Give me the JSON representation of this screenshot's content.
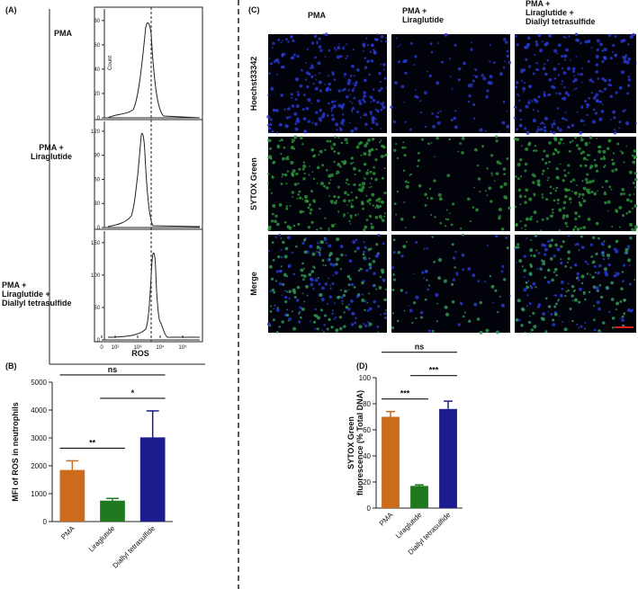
{
  "panel_labels": [
    "(A)",
    "(B)",
    "(C)",
    "(D)"
  ],
  "flow": {
    "rows": [
      "PMA",
      "PMA +\nLiraglutide",
      "PMA +\nLiraglutide +\nDiallyl tetrasulfide"
    ],
    "y_label": "Count",
    "x_label": "ROS",
    "plots": [
      {
        "ylim": [
          0,
          88
        ],
        "yticks": [
          0,
          20,
          40,
          60,
          80
        ]
      },
      {
        "ylim": [
          0,
          130
        ],
        "yticks": [
          0,
          30,
          60,
          90,
          120
        ]
      },
      {
        "ylim": [
          0,
          165
        ],
        "yticks": [
          0,
          50,
          100,
          150
        ]
      }
    ],
    "xticks": [
      0,
      {
        "value": 100,
        "label": "10²"
      },
      {
        "value": 1000,
        "label": "10³"
      },
      {
        "value": 10000,
        "label": "10⁴"
      },
      {
        "value": 100000,
        "label": "10⁵"
      }
    ]
  },
  "images": {
    "columns": [
      "PMA",
      "PMA +\nLiraglutide",
      "PMA +\nLiraglutide +\nDiallyl tetrasulfide"
    ],
    "rows": [
      "Hoechst33342",
      "SYTOX Green",
      "Merge"
    ]
  },
  "chart_data": [
    {
      "type": "bar",
      "panel": "(B)",
      "y_label": "MFI of ROS in neutrophils",
      "categories": [
        "PMA",
        "Liraglutide",
        "Diallyl tetrasulfide"
      ],
      "values": [
        1850,
        750,
        3020
      ],
      "errors": [
        330,
        80,
        950
      ],
      "colors": [
        "#cc6b1c",
        "#1f7a1f",
        "#1c1c8e"
      ],
      "ylim": [
        0,
        5000
      ],
      "yticks": [
        0,
        1000,
        2000,
        3000,
        4000,
        5000
      ],
      "annotations": [
        {
          "text": "**",
          "between": [
            0,
            1
          ]
        },
        {
          "text": "*",
          "between": [
            1,
            2
          ]
        },
        {
          "text": "ns",
          "between": [
            0,
            2
          ]
        }
      ]
    },
    {
      "type": "bar",
      "panel": "(D)",
      "y_label": "SYTOX Green\nfluorescence (% Total DNA)",
      "categories": [
        "PMA",
        "Liraglutide",
        "Diallyl tetrasulfide"
      ],
      "values": [
        70,
        17,
        76
      ],
      "errors": [
        4,
        0.8,
        6
      ],
      "colors": [
        "#cc6b1c",
        "#1f7a1f",
        "#1c1c8e"
      ],
      "ylim": [
        0,
        100
      ],
      "yticks": [
        0,
        20,
        40,
        60,
        80,
        100
      ],
      "annotations": [
        {
          "text": "***",
          "between": [
            0,
            1
          ]
        },
        {
          "text": "***",
          "between": [
            1,
            2
          ]
        },
        {
          "text": "ns",
          "between": [
            0,
            2
          ]
        }
      ]
    }
  ]
}
